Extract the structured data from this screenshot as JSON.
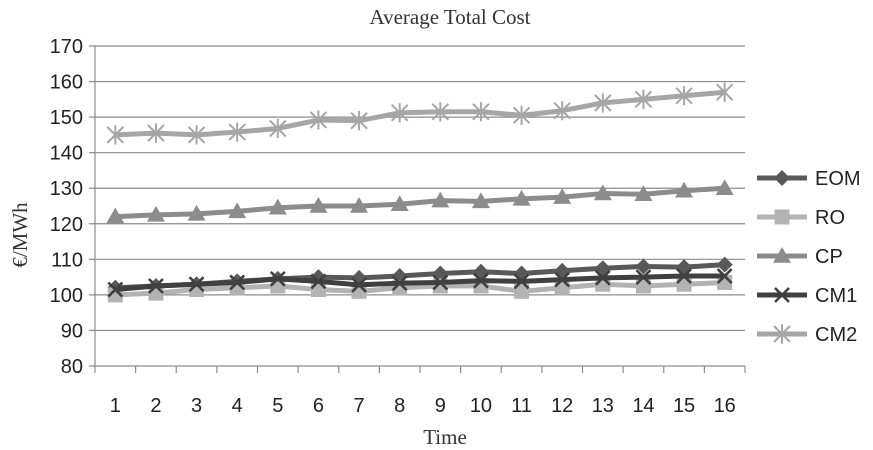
{
  "chart_data": {
    "type": "line",
    "title": "Average Total Cost",
    "xlabel": "Time",
    "ylabel": "€/MWh",
    "x": [
      1,
      2,
      3,
      4,
      5,
      6,
      7,
      8,
      9,
      10,
      11,
      12,
      13,
      14,
      15,
      16
    ],
    "ylim": [
      80,
      170
    ],
    "yticks": [
      80,
      90,
      100,
      110,
      120,
      130,
      140,
      150,
      160,
      170
    ],
    "grid": "horizontal",
    "legend_position": "right",
    "series": [
      {
        "name": "EOM",
        "marker": "diamond",
        "color": "#595959",
        "values": [
          102,
          102.5,
          103,
          103.8,
          104.5,
          105,
          104.8,
          105.3,
          106,
          106.5,
          106,
          106.8,
          107.5,
          108,
          107.8,
          108.5
        ]
      },
      {
        "name": "RO",
        "marker": "square",
        "color": "#b3b3b3",
        "values": [
          100,
          100.5,
          101.5,
          102,
          102.5,
          101.5,
          101,
          102,
          102.5,
          102.5,
          101,
          102,
          103,
          102.5,
          103,
          103.5
        ]
      },
      {
        "name": "CP",
        "marker": "triangle",
        "color": "#8c8c8c",
        "values": [
          122,
          122.5,
          122.8,
          123.5,
          124.5,
          125,
          125,
          125.5,
          126.5,
          126.3,
          127,
          127.5,
          128.5,
          128.3,
          129.3,
          130
        ]
      },
      {
        "name": "CM1",
        "marker": "x",
        "color": "#404040",
        "values": [
          101.5,
          102.5,
          103,
          103.5,
          104.5,
          103.8,
          102.8,
          103.3,
          103.5,
          104,
          103.8,
          104.3,
          104.8,
          105,
          105.3,
          105.3
        ]
      },
      {
        "name": "CM2",
        "marker": "asterisk",
        "color": "#a6a6a6",
        "values": [
          145,
          145.5,
          145,
          145.8,
          146.8,
          149.2,
          149,
          151.2,
          151.5,
          151.5,
          150.5,
          151.8,
          154,
          155,
          156,
          157
        ]
      }
    ]
  }
}
